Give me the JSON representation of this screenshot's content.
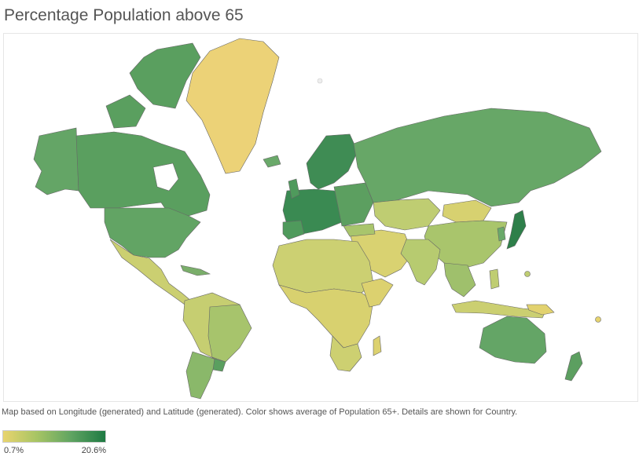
{
  "title": "Percentage Population above 65",
  "caption": "Map based on Longitude (generated) and Latitude (generated).  Color shows average of Population 65+.  Details are shown for Country.",
  "legend": {
    "min_label": "0.7%",
    "max_label": "20.6%",
    "color_low": "#e8d46e",
    "color_high": "#1e7a43"
  },
  "colors": {
    "very_high": "#2e7f4a",
    "high": "#4f9a5c",
    "mid_high": "#6aa96a",
    "mid": "#9fc06c",
    "mid_low": "#bfcd72",
    "low": "#d4d070",
    "very_low": "#e8d46e",
    "border": "#555555"
  }
}
